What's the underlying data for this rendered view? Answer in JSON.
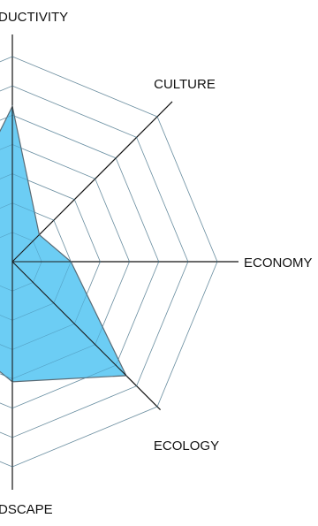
{
  "chart_data": {
    "type": "radar",
    "axes": [
      "PRODUCTIVITY",
      "CULTURE",
      "ECONOMY",
      "ECOLOGY",
      "LANDSCAPE"
    ],
    "axis_labels": {
      "productivity": "DUCTIVITY",
      "culture": "CULTURE",
      "economy": "ECONOMY",
      "ecology": "ECOLOGY",
      "landscape": "DSCAPE"
    },
    "scale_max": 7,
    "rings": 7,
    "series": [
      {
        "values": {
          "PRODUCTIVITY": 5.3,
          "CULTURE": 1.3,
          "ECONOMY": 2.0,
          "ECOLOGY": 5.5,
          "LANDSCAPE": 4.1
        },
        "fill": "#6ccdf4",
        "stroke": "#5a6a74"
      }
    ],
    "grid": true
  }
}
